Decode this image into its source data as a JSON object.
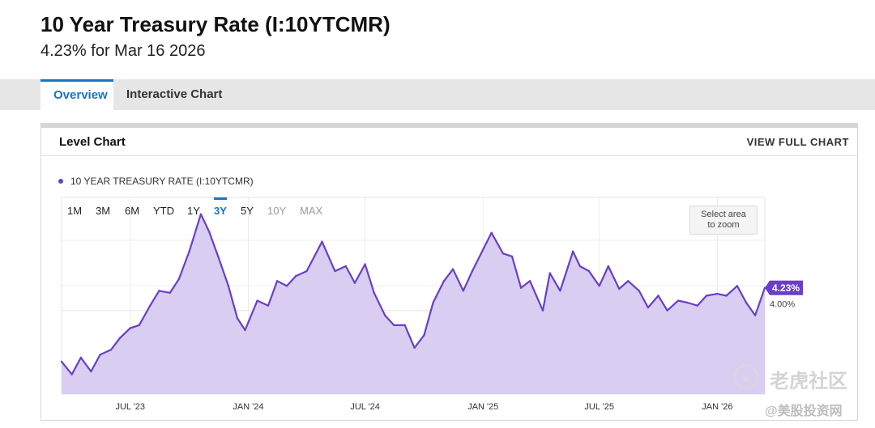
{
  "header": {
    "title": "10 Year Treasury Rate (I:10YTCMR)",
    "subtitle": "4.23% for Mar 16 2026"
  },
  "tabs": [
    {
      "label": "Overview",
      "active": true
    },
    {
      "label": "Interactive Chart",
      "active": false
    }
  ],
  "card": {
    "title": "Level Chart",
    "link": "VIEW FULL CHART"
  },
  "legend": {
    "label": "10 YEAR TREASURY RATE (I:10YTCMR)",
    "color": "#6a3fc7"
  },
  "ranges": [
    {
      "label": "1M",
      "state": "normal"
    },
    {
      "label": "3M",
      "state": "normal"
    },
    {
      "label": "6M",
      "state": "normal"
    },
    {
      "label": "YTD",
      "state": "normal"
    },
    {
      "label": "1Y",
      "state": "normal"
    },
    {
      "label": "3Y",
      "state": "active"
    },
    {
      "label": "5Y",
      "state": "normal"
    },
    {
      "label": "10Y",
      "state": "disabled"
    },
    {
      "label": "MAX",
      "state": "disabled"
    }
  ],
  "zoom_hint": {
    "line1": "Select area",
    "line2": "to zoom"
  },
  "colors": {
    "accent": "#1a73c8",
    "series": "#6a3fc7",
    "fill": "#d9cdf1"
  },
  "chart_data": {
    "type": "area",
    "title": "10 YEAR TREASURY RATE (I:10YTCMR)",
    "xlabel": "",
    "ylabel": "",
    "ylim": [
      3.15,
      5.15
    ],
    "xlim": [
      "2023-03-16",
      "2026-03-16"
    ],
    "grid": true,
    "x_ticks": [
      {
        "date": "2023-07-01",
        "label": "JUL '23"
      },
      {
        "date": "2024-01-01",
        "label": "JAN '24"
      },
      {
        "date": "2024-07-01",
        "label": "JUL '24"
      },
      {
        "date": "2025-01-01",
        "label": "JAN '25"
      },
      {
        "date": "2025-07-01",
        "label": "JUL '25"
      },
      {
        "date": "2026-01-01",
        "label": "JAN '26"
      }
    ],
    "y_ticks": [
      {
        "value": 4.0,
        "label": "4.00%"
      }
    ],
    "last_value": {
      "value": 4.23,
      "label": "4.23%"
    },
    "series": [
      {
        "name": "10 YEAR TREASURY RATE (I:10YTCMR)",
        "x": [
          "2023-03-16",
          "2023-04-01",
          "2023-04-15",
          "2023-05-01",
          "2023-05-15",
          "2023-06-01",
          "2023-06-15",
          "2023-07-01",
          "2023-07-15",
          "2023-08-01",
          "2023-08-15",
          "2023-09-01",
          "2023-09-15",
          "2023-10-01",
          "2023-10-19",
          "2023-11-01",
          "2023-11-15",
          "2023-12-01",
          "2023-12-15",
          "2023-12-27",
          "2024-01-15",
          "2024-02-01",
          "2024-02-15",
          "2024-03-01",
          "2024-03-15",
          "2024-04-01",
          "2024-04-25",
          "2024-05-15",
          "2024-06-01",
          "2024-06-15",
          "2024-07-01",
          "2024-07-15",
          "2024-08-01",
          "2024-08-15",
          "2024-09-01",
          "2024-09-16",
          "2024-10-01",
          "2024-10-15",
          "2024-11-01",
          "2024-11-15",
          "2024-12-01",
          "2024-12-15",
          "2025-01-14",
          "2025-02-01",
          "2025-02-15",
          "2025-03-01",
          "2025-03-15",
          "2025-04-04",
          "2025-04-15",
          "2025-05-01",
          "2025-05-21",
          "2025-06-01",
          "2025-06-15",
          "2025-07-01",
          "2025-07-15",
          "2025-08-01",
          "2025-08-15",
          "2025-09-01",
          "2025-09-15",
          "2025-10-01",
          "2025-10-15",
          "2025-11-01",
          "2025-11-15",
          "2025-12-01",
          "2025-12-15",
          "2026-01-01",
          "2026-01-15",
          "2026-02-01",
          "2026-02-15",
          "2026-03-01",
          "2026-03-16"
        ],
        "values": [
          3.48,
          3.35,
          3.52,
          3.38,
          3.55,
          3.6,
          3.72,
          3.82,
          3.85,
          4.05,
          4.2,
          4.18,
          4.32,
          4.6,
          4.98,
          4.8,
          4.55,
          4.25,
          3.92,
          3.8,
          4.1,
          4.05,
          4.3,
          4.25,
          4.35,
          4.4,
          4.7,
          4.4,
          4.45,
          4.28,
          4.47,
          4.18,
          3.95,
          3.85,
          3.85,
          3.62,
          3.75,
          4.08,
          4.3,
          4.42,
          4.2,
          4.4,
          4.79,
          4.58,
          4.55,
          4.23,
          4.3,
          4.0,
          4.38,
          4.2,
          4.6,
          4.45,
          4.4,
          4.25,
          4.45,
          4.22,
          4.3,
          4.2,
          4.03,
          4.15,
          4.0,
          4.1,
          4.08,
          4.05,
          4.15,
          4.17,
          4.15,
          4.25,
          4.08,
          3.95,
          4.23
        ]
      }
    ]
  }
}
